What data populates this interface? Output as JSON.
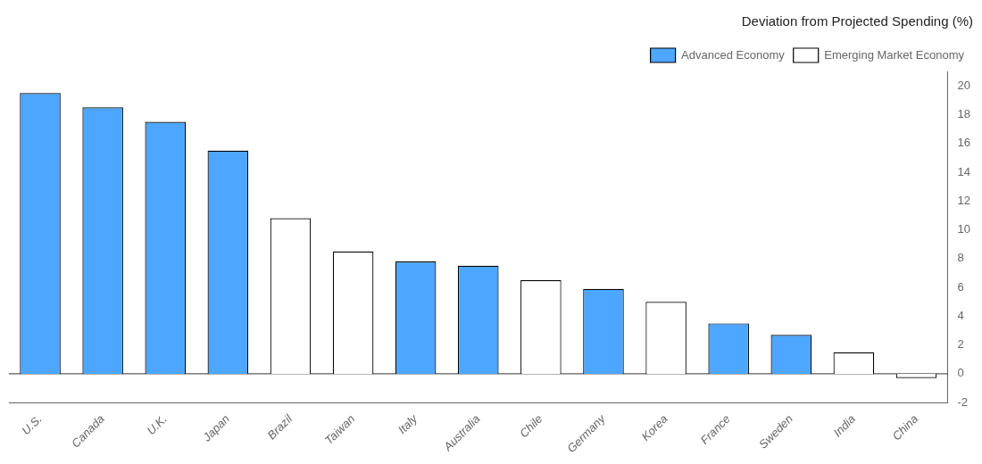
{
  "chart_data": {
    "type": "bar",
    "title": "Deviation from Projected Spending (%)",
    "categories": [
      "U.S.",
      "Canada",
      "U.K.",
      "Japan",
      "Brazil",
      "Taiwan",
      "Italy",
      "Australia",
      "Chile",
      "Germany",
      "Korea",
      "France",
      "Sweden",
      "India",
      "China"
    ],
    "series": [
      {
        "name": "Advanced Economy",
        "color": "#4da6ff",
        "values": [
          19.5,
          18.5,
          17.5,
          15.5,
          null,
          null,
          7.8,
          7.5,
          null,
          5.9,
          null,
          3.5,
          2.7,
          null,
          null
        ]
      },
      {
        "name": "Emerging Market Economy",
        "color": "#ffffff",
        "values": [
          null,
          null,
          null,
          null,
          10.8,
          8.5,
          null,
          null,
          6.5,
          null,
          5.0,
          null,
          null,
          1.5,
          -0.3
        ]
      }
    ],
    "ylim": [
      -2,
      21
    ],
    "yticks": [
      -2,
      0,
      2,
      4,
      6,
      8,
      10,
      12,
      14,
      16,
      18,
      20
    ],
    "grid": false,
    "legend": "upper right"
  }
}
